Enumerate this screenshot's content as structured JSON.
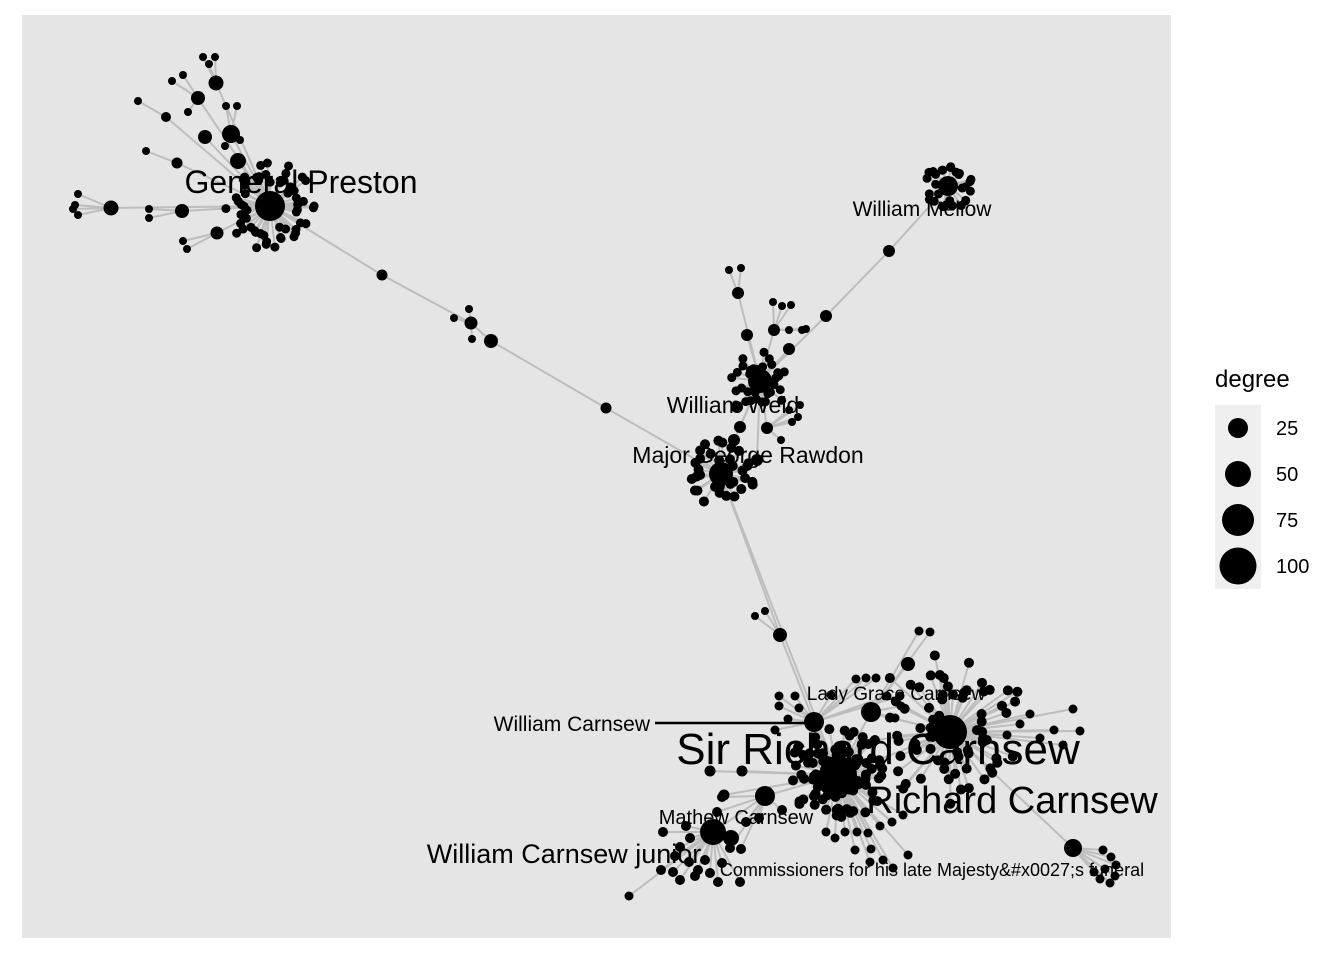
{
  "chart_data": {
    "type": "network",
    "title": "",
    "node_color": "#000000",
    "edge_color": "#bdbdbd",
    "panel_color": "#e5e5e5",
    "hub_labels": [
      {
        "id": "general_preston",
        "text": "General Preston",
        "degree": 95
      },
      {
        "id": "william_mellow",
        "text": "William Mellow",
        "degree": 30
      },
      {
        "id": "william_weld",
        "text": "William Weld",
        "degree": 45
      },
      {
        "id": "major_rawdon",
        "text": "Major George Rawdon",
        "degree": 55
      },
      {
        "id": "william_carnsew",
        "text": "William Carnsew",
        "degree": 30
      },
      {
        "id": "lady_grace",
        "text": "Lady Grace Carnsew",
        "degree": 30
      },
      {
        "id": "sir_richard",
        "text": "Sir Richard Carnsew",
        "degree": 120
      },
      {
        "id": "richard_carnsew",
        "text": "Richard Carnsew",
        "degree": 75
      },
      {
        "id": "mathew_carnsew",
        "text": "Mathew Carnsew",
        "degree": 25
      },
      {
        "id": "william_junior",
        "text": "William Carnsew junior",
        "degree": 50
      },
      {
        "id": "commissioners",
        "text": "Commissioners for his late Majesty&#x0027;s funeral",
        "degree": 20
      }
    ],
    "legend": {
      "title": "degree",
      "entries": [
        {
          "label": "25",
          "value": 25
        },
        {
          "label": "50",
          "value": 50
        },
        {
          "label": "75",
          "value": 75
        },
        {
          "label": "100",
          "value": 100
        }
      ]
    }
  }
}
